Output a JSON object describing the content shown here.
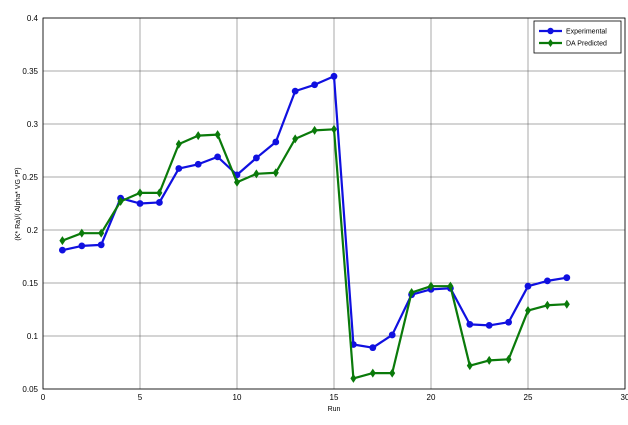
{
  "chart_data": {
    "type": "line",
    "title": "",
    "xlabel": "Run",
    "ylabel": "(K* Ra)/( Alpha* VG *P)",
    "xlim": [
      0,
      30
    ],
    "ylim": [
      0.05,
      0.4
    ],
    "xticks": [
      0,
      5,
      10,
      15,
      20,
      25,
      30
    ],
    "yticks": [
      0.05,
      0.1,
      0.15,
      0.2,
      0.25,
      0.3,
      0.35,
      0.4
    ],
    "xtick_labels": [
      "0",
      "5",
      "10",
      "15",
      "20",
      "25",
      "30"
    ],
    "ytick_labels": [
      "0.05",
      "0.1",
      "0.15",
      "0.2",
      "0.25",
      "0.3",
      "0.35",
      "0.4"
    ],
    "grid": true,
    "legend_position": "top-right",
    "x": [
      1,
      2,
      3,
      4,
      5,
      6,
      7,
      8,
      9,
      10,
      11,
      12,
      13,
      14,
      15,
      16,
      17,
      18,
      19,
      20,
      21,
      22,
      23,
      24,
      25,
      26,
      27
    ],
    "series": [
      {
        "name": "Experimental",
        "color": "#1010e0",
        "marker": "circle",
        "values": [
          0.181,
          0.185,
          0.186,
          0.23,
          0.225,
          0.226,
          0.258,
          0.262,
          0.269,
          0.252,
          0.268,
          0.283,
          0.331,
          0.337,
          0.345,
          0.092,
          0.089,
          0.101,
          0.139,
          0.144,
          0.145,
          0.111,
          0.11,
          0.113,
          0.147,
          0.152,
          0.155
        ]
      },
      {
        "name": "DA Predicted",
        "color": "#0a7a0a",
        "marker": "diamond",
        "values": [
          0.19,
          0.197,
          0.197,
          0.227,
          0.235,
          0.235,
          0.281,
          0.289,
          0.29,
          0.245,
          0.253,
          0.254,
          0.286,
          0.294,
          0.295,
          0.06,
          0.065,
          0.065,
          0.141,
          0.147,
          0.147,
          0.072,
          0.077,
          0.078,
          0.124,
          0.129,
          0.13
        ]
      }
    ]
  }
}
